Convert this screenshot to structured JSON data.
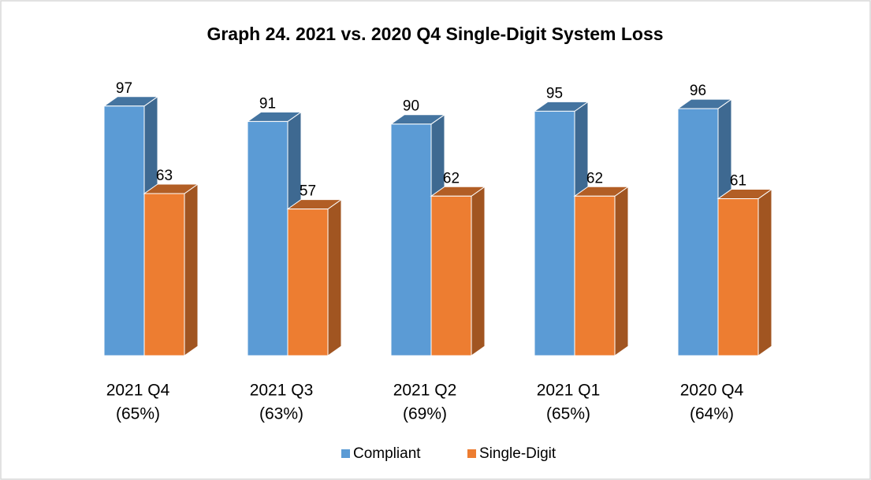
{
  "chart_data": {
    "type": "bar3d",
    "title": "Graph 24. 2021 vs. 2020 Q4 Single-Digit System Loss",
    "categories": [
      [
        "2021 Q4",
        "(65%)"
      ],
      [
        "2021 Q3",
        "(63%)"
      ],
      [
        "2021 Q2",
        "(69%)"
      ],
      [
        "2021 Q1",
        "(65%)"
      ],
      [
        "2020 Q4",
        "(64%)"
      ]
    ],
    "series": [
      {
        "name": "Compliant",
        "color": "#5b9bd5",
        "values": [
          97,
          91,
          90,
          95,
          96
        ]
      },
      {
        "name": "Single-Digit",
        "color": "#ed7d31",
        "values": [
          63,
          57,
          62,
          62,
          61
        ]
      }
    ],
    "legend": "bottom"
  }
}
